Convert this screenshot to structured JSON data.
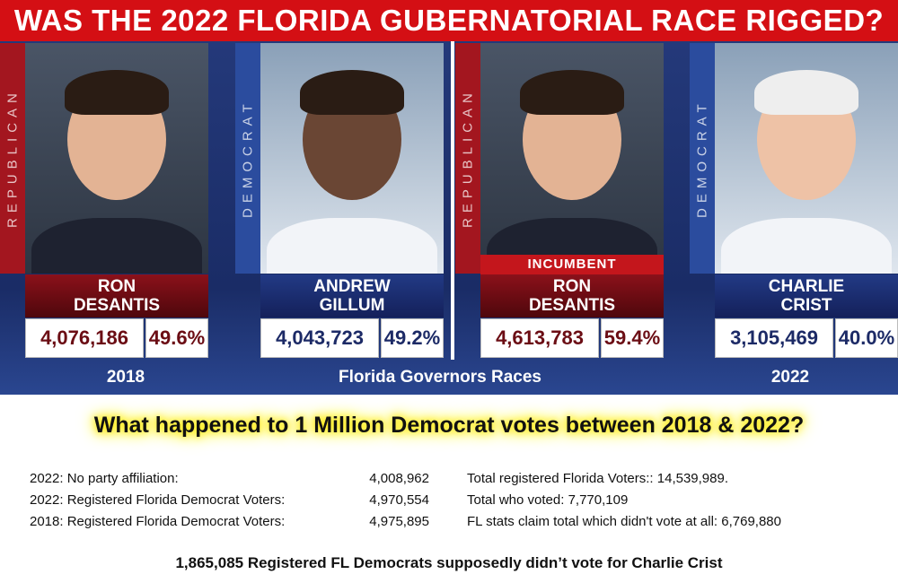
{
  "header": {
    "title": "WAS THE 2022 FLORIDA GUBERNATORIAL RACE RIGGED?"
  },
  "races": [
    {
      "year": "2018",
      "candidates": [
        {
          "party": "REPUBLICAN",
          "name": [
            "RON",
            "DESANTIS"
          ],
          "votes": "4,076,186",
          "percent": "49.6%"
        },
        {
          "party": "DEMOCRAT",
          "name": [
            "ANDREW",
            "GILLUM"
          ],
          "votes": "4,043,723",
          "percent": "49.2%"
        }
      ]
    },
    {
      "year": "2022",
      "candidates": [
        {
          "party": "REPUBLICAN",
          "badge": "INCUMBENT",
          "name": [
            "RON",
            "DESANTIS"
          ],
          "votes": "4,613,783",
          "percent": "59.4%"
        },
        {
          "party": "DEMOCRAT",
          "name": [
            "CHARLIE",
            "CRIST"
          ],
          "votes": "3,105,469",
          "percent": "40.0%"
        }
      ]
    }
  ],
  "caption": "Florida Governors Races",
  "question": "What happened to 1 Million Democrat votes between 2018 & 2022?",
  "stats": {
    "left": [
      {
        "label": "2022: No party affiliation:",
        "value": "4,008,962"
      },
      {
        "label": "2022: Registered Florida Democrat Voters:",
        "value": "4,970,554"
      },
      {
        "label": "2018: Registered Florida Democrat Voters:",
        "value": "4,975,895"
      }
    ],
    "right": [
      "Total registered Florida Voters:: 14,539,989.",
      "Total who voted: 7,770,109",
      "FL stats claim total which didn't vote at all: 6,769,880"
    ]
  },
  "footer": "1,865,085 Registered FL Democrats supposedly didn’t vote for Charlie Crist"
}
